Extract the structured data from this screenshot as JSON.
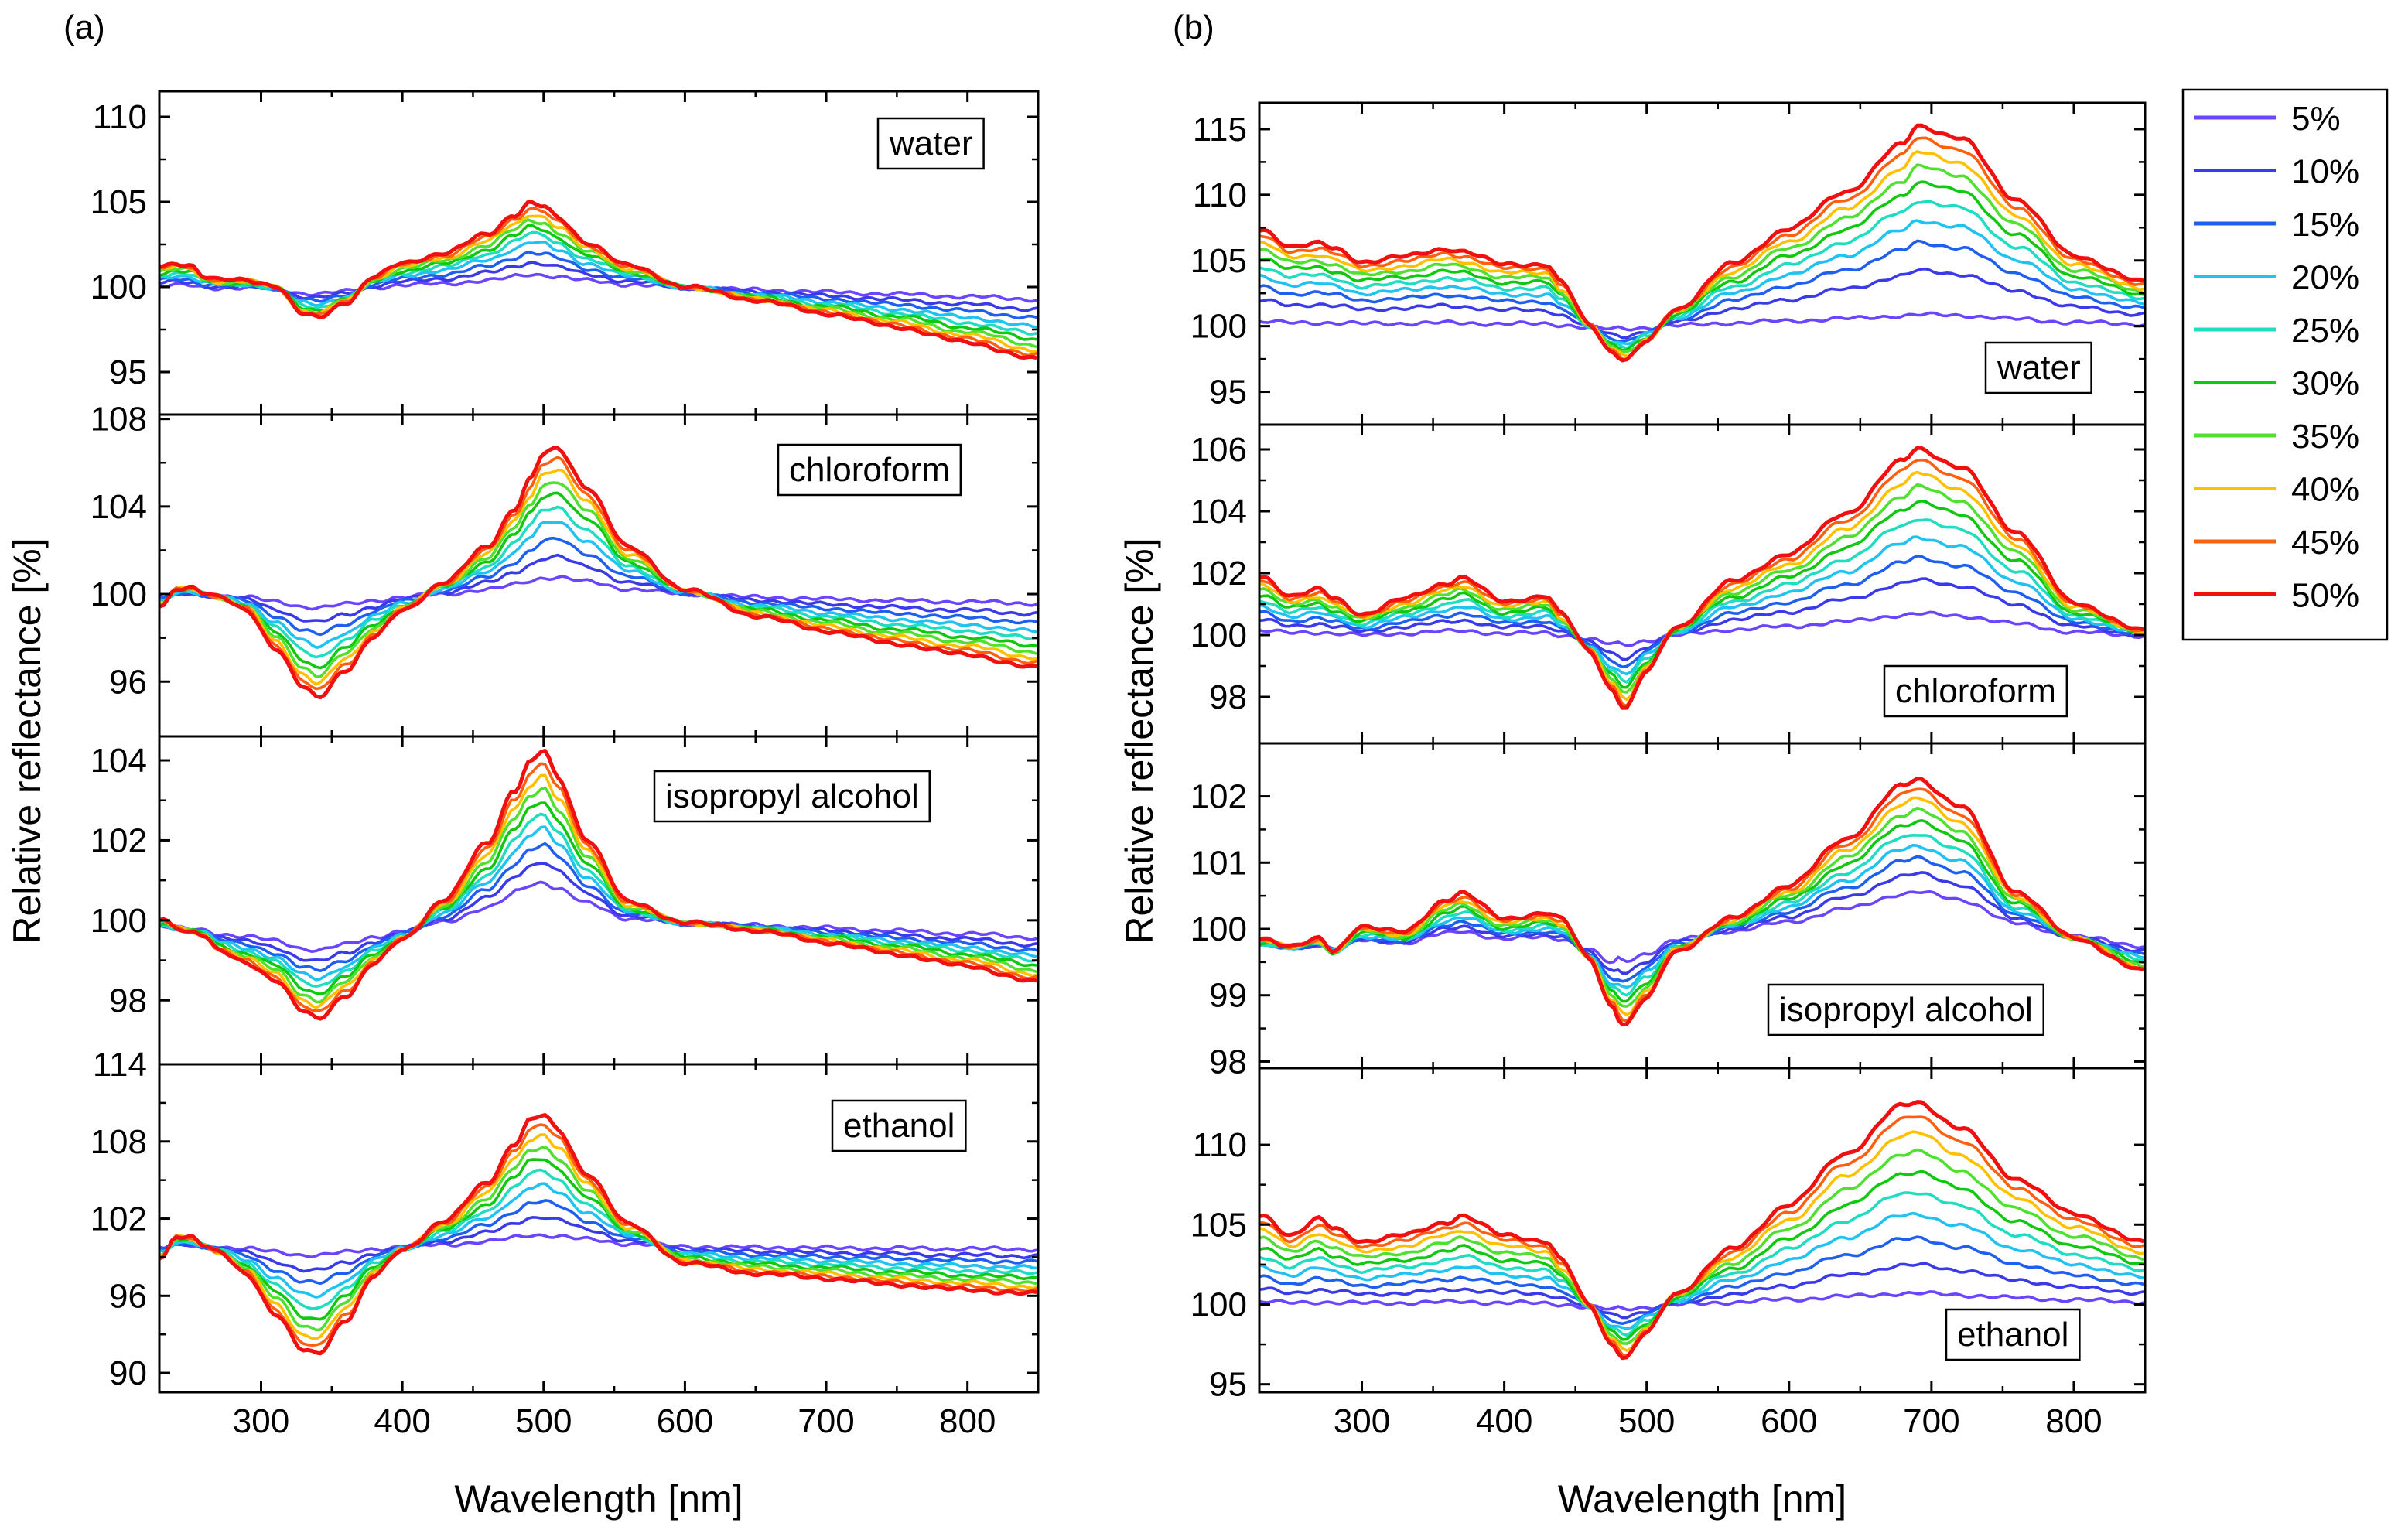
{
  "figure": {
    "panel_labels": [
      "(a)",
      "(b)"
    ],
    "legend_title": "",
    "legend": [
      {
        "label": "5%",
        "color": "#6a45ff"
      },
      {
        "label": "10%",
        "color": "#3a3ae8"
      },
      {
        "label": "15%",
        "color": "#1f5ff0"
      },
      {
        "label": "20%",
        "color": "#1fc2f0"
      },
      {
        "label": "25%",
        "color": "#20dcc0"
      },
      {
        "label": "30%",
        "color": "#10c810"
      },
      {
        "label": "35%",
        "color": "#50e030"
      },
      {
        "label": "40%",
        "color": "#ffc000"
      },
      {
        "label": "45%",
        "color": "#ff6010"
      },
      {
        "label": "50%",
        "color": "#f01010"
      }
    ]
  },
  "chart_data": [
    {
      "type": "line",
      "panel": "(a)",
      "label": "water",
      "title": "",
      "xlabel": "Wavelength [nm]",
      "ylabel": "Relative reflectance [%]",
      "xlim": [
        228,
        850
      ],
      "ylim": [
        92.5,
        111.5
      ],
      "xticks": [
        "300",
        "400",
        "500",
        "600",
        "700",
        "800"
      ],
      "yticks": [
        "95",
        "100",
        "105",
        "110"
      ],
      "ytick_values": [
        95,
        100,
        105,
        110
      ],
      "shape": {
        "x": [
          230,
          240,
          250,
          260,
          270,
          290,
          310,
          330,
          340,
          360,
          380,
          400,
          430,
          460,
          480,
          490,
          500,
          510,
          530,
          560,
          600,
          650,
          700,
          750,
          800,
          850
        ],
        "y": [
          1.1,
          1.3,
          1.2,
          0.5,
          0.3,
          0.3,
          0.0,
          -1.7,
          -1.9,
          -1.0,
          0.5,
          1.3,
          1.9,
          3.0,
          4.2,
          4.9,
          4.7,
          4.0,
          2.6,
          1.2,
          0.0,
          -0.8,
          -1.6,
          -2.4,
          -3.3,
          -4.3
        ]
      },
      "amplitude": [
        0.16,
        0.3,
        0.42,
        0.54,
        0.64,
        0.72,
        0.8,
        0.87,
        0.94,
        1.0
      ],
      "offset": 0.2
    },
    {
      "type": "line",
      "panel": "(a)",
      "label": "chloroform",
      "title": "",
      "xlabel": "Wavelength [nm]",
      "ylabel": "Relative reflectance [%]",
      "xlim": [
        228,
        850
      ],
      "ylim": [
        93.5,
        108.2
      ],
      "xticks": [
        "300",
        "400",
        "500",
        "600",
        "700",
        "800"
      ],
      "yticks": [
        "96",
        "100",
        "104",
        "108"
      ],
      "ytick_values": [
        96,
        100,
        104,
        108
      ],
      "shape": {
        "x": [
          230,
          240,
          250,
          260,
          270,
          290,
          310,
          330,
          340,
          360,
          380,
          400,
          430,
          460,
          480,
          490,
          500,
          510,
          530,
          560,
          600,
          650,
          700,
          750,
          800,
          850
        ],
        "y": [
          -0.6,
          0.2,
          0.3,
          0.0,
          -0.2,
          -0.8,
          -2.5,
          -4.3,
          -4.8,
          -3.5,
          -2.0,
          -0.8,
          0.5,
          2.1,
          3.9,
          5.2,
          6.4,
          6.6,
          4.9,
          2.1,
          0.2,
          -1.0,
          -1.7,
          -2.3,
          -2.8,
          -3.4
        ]
      },
      "amplitude": [
        0.12,
        0.26,
        0.38,
        0.5,
        0.6,
        0.7,
        0.78,
        0.86,
        0.93,
        1.0
      ],
      "offset": 0.1
    },
    {
      "type": "line",
      "panel": "(a)",
      "label": "isopropyl alcohol",
      "title": "",
      "xlabel": "Wavelength [nm]",
      "ylabel": "Relative reflectance [%]",
      "xlim": [
        228,
        850
      ],
      "ylim": [
        96.4,
        104.6
      ],
      "xticks": [
        "300",
        "400",
        "500",
        "600",
        "700",
        "800"
      ],
      "yticks": [
        "98",
        "100",
        "102",
        "104"
      ],
      "ytick_values": [
        98,
        100,
        102,
        104
      ],
      "shape": {
        "x": [
          230,
          240,
          250,
          260,
          270,
          290,
          310,
          330,
          340,
          360,
          380,
          400,
          430,
          460,
          480,
          490,
          500,
          510,
          530,
          560,
          600,
          650,
          700,
          750,
          800,
          850
        ],
        "y": [
          -0.1,
          -0.3,
          -0.4,
          -0.5,
          -0.9,
          -1.2,
          -1.6,
          -2.4,
          -2.6,
          -2.0,
          -1.2,
          -0.6,
          0.4,
          1.8,
          3.2,
          3.9,
          4.2,
          3.5,
          2.0,
          0.4,
          -0.1,
          -0.3,
          -0.6,
          -0.9,
          -1.2,
          -1.6
        ]
      },
      "amplitude": [
        0.24,
        0.36,
        0.46,
        0.55,
        0.63,
        0.71,
        0.79,
        0.86,
        0.93,
        1.0
      ],
      "offset": 0.25
    },
    {
      "type": "line",
      "panel": "(a)",
      "label": "ethanol",
      "title": "",
      "xlabel": "Wavelength [nm]",
      "ylabel": "Relative reflectance [%]",
      "xlim": [
        228,
        850
      ],
      "ylim": [
        88.5,
        114.0
      ],
      "xticks": [
        "300",
        "400",
        "500",
        "600",
        "700",
        "800"
      ],
      "yticks": [
        "90",
        "96",
        "102",
        "108",
        "114"
      ],
      "ytick_values": [
        90,
        96,
        102,
        108,
        114
      ],
      "shape": {
        "x": [
          230,
          240,
          250,
          260,
          270,
          290,
          310,
          330,
          340,
          360,
          380,
          400,
          430,
          460,
          480,
          490,
          500,
          510,
          530,
          560,
          600,
          650,
          700,
          750,
          800,
          850
        ],
        "y": [
          -1.2,
          0.5,
          0.5,
          -0.2,
          -0.8,
          -2.5,
          -5.5,
          -8.4,
          -8.7,
          -6.0,
          -2.6,
          -0.6,
          1.7,
          4.6,
          7.8,
          9.6,
          10.0,
          8.8,
          5.5,
          1.5,
          -1.5,
          -2.3,
          -2.7,
          -3.2,
          -3.6,
          -3.9
        ]
      },
      "amplitude": [
        0.08,
        0.22,
        0.34,
        0.46,
        0.57,
        0.67,
        0.76,
        0.85,
        0.93,
        1.0
      ],
      "offset": 0.3
    },
    {
      "type": "line",
      "panel": "(b)",
      "label": "water",
      "title": "",
      "xlabel": "Wavelength [nm]",
      "ylabel": "Relative reflectance [%]",
      "xlim": [
        228,
        850
      ],
      "ylim": [
        92.5,
        117.0
      ],
      "xticks": [
        "300",
        "400",
        "500",
        "600",
        "700",
        "800"
      ],
      "yticks": [
        "95",
        "100",
        "105",
        "110",
        "115"
      ],
      "ytick_values": [
        95,
        100,
        105,
        110,
        115
      ],
      "shape": {
        "x": [
          230,
          250,
          270,
          280,
          300,
          330,
          360,
          370,
          400,
          430,
          440,
          460,
          475,
          485,
          500,
          520,
          560,
          600,
          640,
          680,
          690,
          720,
          760,
          800,
          850
        ],
        "y": [
          7.2,
          6.0,
          6.2,
          5.8,
          4.8,
          5.2,
          5.8,
          5.6,
          4.6,
          4.6,
          3.2,
          0.0,
          -2.0,
          -2.6,
          -1.2,
          1.2,
          4.7,
          7.4,
          10.2,
          13.8,
          15.2,
          14.3,
          9.6,
          5.3,
          3.3
        ]
      },
      "amplitude": [
        0.06,
        0.28,
        0.42,
        0.53,
        0.63,
        0.72,
        0.8,
        0.87,
        0.94,
        1.0
      ],
      "offset": 0.2
    },
    {
      "type": "line",
      "panel": "(b)",
      "label": "chloroform",
      "title": "",
      "xlabel": "Wavelength [nm]",
      "ylabel": "Relative reflectance [%]",
      "xlim": [
        228,
        850
      ],
      "ylim": [
        96.5,
        106.8
      ],
      "xticks": [
        "300",
        "400",
        "500",
        "600",
        "700",
        "800"
      ],
      "yticks": [
        "98",
        "100",
        "102",
        "104",
        "106"
      ],
      "ytick_values": [
        98,
        100,
        102,
        104,
        106
      ],
      "shape": {
        "x": [
          230,
          250,
          270,
          280,
          300,
          330,
          360,
          370,
          400,
          430,
          440,
          460,
          475,
          485,
          500,
          520,
          560,
          600,
          640,
          680,
          690,
          720,
          760,
          800,
          850
        ],
        "y": [
          1.8,
          1.2,
          1.4,
          1.1,
          0.6,
          1.1,
          1.6,
          1.8,
          1.0,
          1.2,
          0.6,
          -0.6,
          -1.8,
          -2.4,
          -1.2,
          0.2,
          1.7,
          2.6,
          3.9,
          5.6,
          6.0,
          5.4,
          3.3,
          1.0,
          0.1
        ]
      },
      "amplitude": [
        0.12,
        0.3,
        0.42,
        0.53,
        0.63,
        0.72,
        0.8,
        0.87,
        0.94,
        1.0
      ],
      "offset": 0.15
    },
    {
      "type": "line",
      "panel": "(b)",
      "label": "isopropyl alcohol",
      "title": "",
      "xlabel": "Wavelength [nm]",
      "ylabel": "Relative reflectance [%]",
      "xlim": [
        228,
        850
      ],
      "ylim": [
        97.9,
        102.8
      ],
      "xticks": [
        "300",
        "400",
        "500",
        "600",
        "700",
        "800"
      ],
      "yticks": [
        "98",
        "99",
        "100",
        "101",
        "102"
      ],
      "ytick_values": [
        98,
        99,
        100,
        101,
        102
      ],
      "shape": {
        "x": [
          230,
          250,
          270,
          280,
          300,
          330,
          360,
          370,
          400,
          430,
          440,
          460,
          475,
          485,
          500,
          520,
          560,
          600,
          640,
          680,
          690,
          720,
          760,
          800,
          850
        ],
        "y": [
          -0.3,
          -0.4,
          -0.3,
          -0.5,
          -0.1,
          -0.2,
          0.3,
          0.4,
          0.0,
          0.1,
          0.0,
          -0.6,
          -1.3,
          -1.5,
          -1.1,
          -0.4,
          0.1,
          0.6,
          1.3,
          2.1,
          2.2,
          1.8,
          0.5,
          -0.2,
          -0.7
        ]
      },
      "amplitude": [
        0.28,
        0.4,
        0.5,
        0.58,
        0.66,
        0.74,
        0.81,
        0.88,
        0.94,
        1.0
      ],
      "offset": 0.3
    },
    {
      "type": "line",
      "panel": "(b)",
      "label": "ethanol",
      "title": "",
      "xlabel": "Wavelength [nm]",
      "ylabel": "Relative reflectance [%]",
      "xlim": [
        228,
        850
      ],
      "ylim": [
        94.5,
        114.8
      ],
      "xticks": [
        "300",
        "400",
        "500",
        "600",
        "700",
        "800"
      ],
      "yticks": [
        "95",
        "100",
        "105",
        "110"
      ],
      "ytick_values": [
        95,
        100,
        105,
        110
      ],
      "shape": {
        "x": [
          230,
          250,
          270,
          280,
          300,
          330,
          360,
          370,
          400,
          430,
          440,
          460,
          475,
          485,
          500,
          520,
          560,
          600,
          640,
          680,
          690,
          720,
          760,
          800,
          850
        ],
        "y": [
          5.4,
          4.2,
          5.2,
          4.6,
          3.8,
          4.2,
          5.0,
          5.4,
          4.2,
          3.8,
          2.6,
          -0.2,
          -2.6,
          -3.4,
          -1.8,
          0.6,
          3.4,
          6.2,
          9.4,
          12.4,
          12.6,
          11.0,
          7.8,
          5.6,
          3.8
        ]
      },
      "amplitude": [
        0.06,
        0.2,
        0.33,
        0.45,
        0.56,
        0.66,
        0.76,
        0.85,
        0.93,
        1.0
      ],
      "offset": 0.3
    }
  ]
}
